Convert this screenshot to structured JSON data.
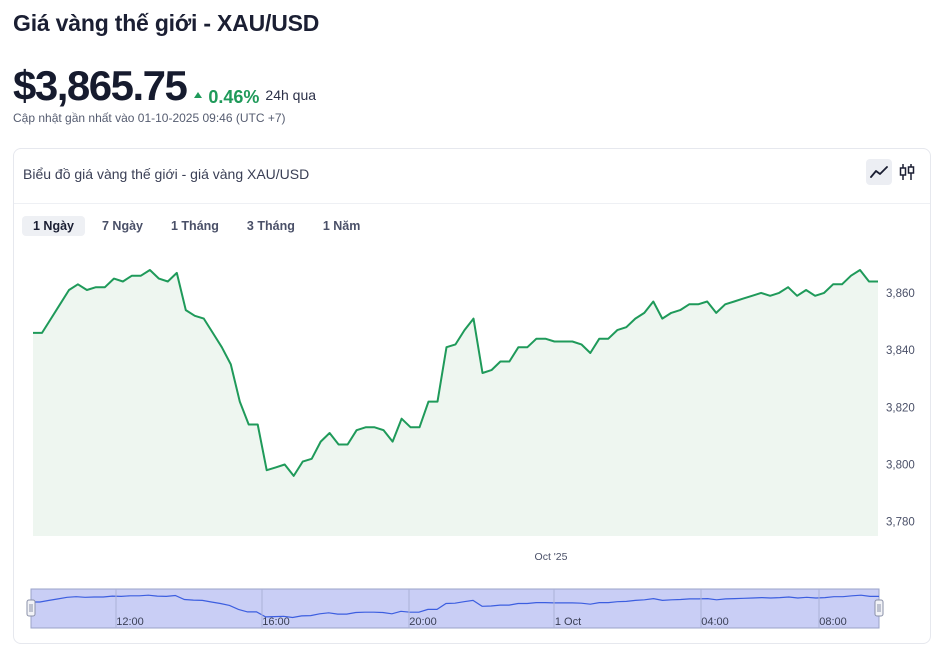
{
  "header": {
    "title": "Giá vàng thế giới - XAU/USD",
    "price": "$3,865.75",
    "change": "0.46%",
    "period": "24h qua",
    "updated": "Cập nhật gần nhất vào 01-10-2025 09:46 (UTC +7)"
  },
  "card": {
    "title": "Biểu đồ giá vàng thế giới - giá vàng XAU/USD",
    "chart_types": [
      {
        "icon": "line-chart-icon",
        "active": true
      },
      {
        "icon": "candlestick-icon",
        "active": false
      }
    ],
    "ranges": [
      {
        "label": "1 Ngày",
        "active": true
      },
      {
        "label": "7 Ngày",
        "active": false
      },
      {
        "label": "1 Tháng",
        "active": false
      },
      {
        "label": "3 Tháng",
        "active": false
      },
      {
        "label": "1 Năm",
        "active": false
      }
    ]
  },
  "colors": {
    "line": "#1f9a5a",
    "area": "#eef6f0",
    "up": "#1f9a5a",
    "navigator_fill": "#c9cef5",
    "navigator_line": "#3c5ee0"
  },
  "chart_data": {
    "type": "area",
    "title": "",
    "xlabel": "Oct '25",
    "ylabel": "",
    "ylim": [
      3775,
      3875
    ],
    "yticks": [
      3780,
      3800,
      3820,
      3840,
      3860
    ],
    "ytick_labels": [
      "3,780",
      "3,800",
      "3,820",
      "3,840",
      "3,860"
    ],
    "x_axis_label": "Oct '25",
    "navigator_ticks": [
      "12:00",
      "16:00",
      "20:00",
      "1 Oct",
      "04:00",
      "08:00"
    ],
    "series": [
      {
        "values": [
          3846,
          3846,
          3851,
          3856,
          3861,
          3863,
          3861,
          3862,
          3862,
          3865,
          3864,
          3866,
          3866,
          3868,
          3865,
          3864,
          3867,
          3854,
          3852,
          3851,
          3846,
          3841,
          3835,
          3822,
          3814,
          3814,
          3798,
          3799,
          3800,
          3796,
          3801,
          3802,
          3808,
          3811,
          3807,
          3807,
          3812,
          3813,
          3813,
          3812,
          3808,
          3816,
          3813,
          3813,
          3822,
          3822,
          3841,
          3842,
          3847,
          3851,
          3832,
          3833,
          3836,
          3836,
          3841,
          3841,
          3844,
          3844,
          3843,
          3843,
          3843,
          3842,
          3839,
          3844,
          3844,
          3847,
          3848,
          3851,
          3853,
          3857,
          3851,
          3853,
          3854,
          3856,
          3856,
          3857,
          3853,
          3856,
          3857,
          3858,
          3859,
          3860,
          3859,
          3860,
          3862,
          3859,
          3861,
          3859,
          3860,
          3863,
          3863,
          3866,
          3868,
          3864,
          3864
        ]
      }
    ]
  }
}
